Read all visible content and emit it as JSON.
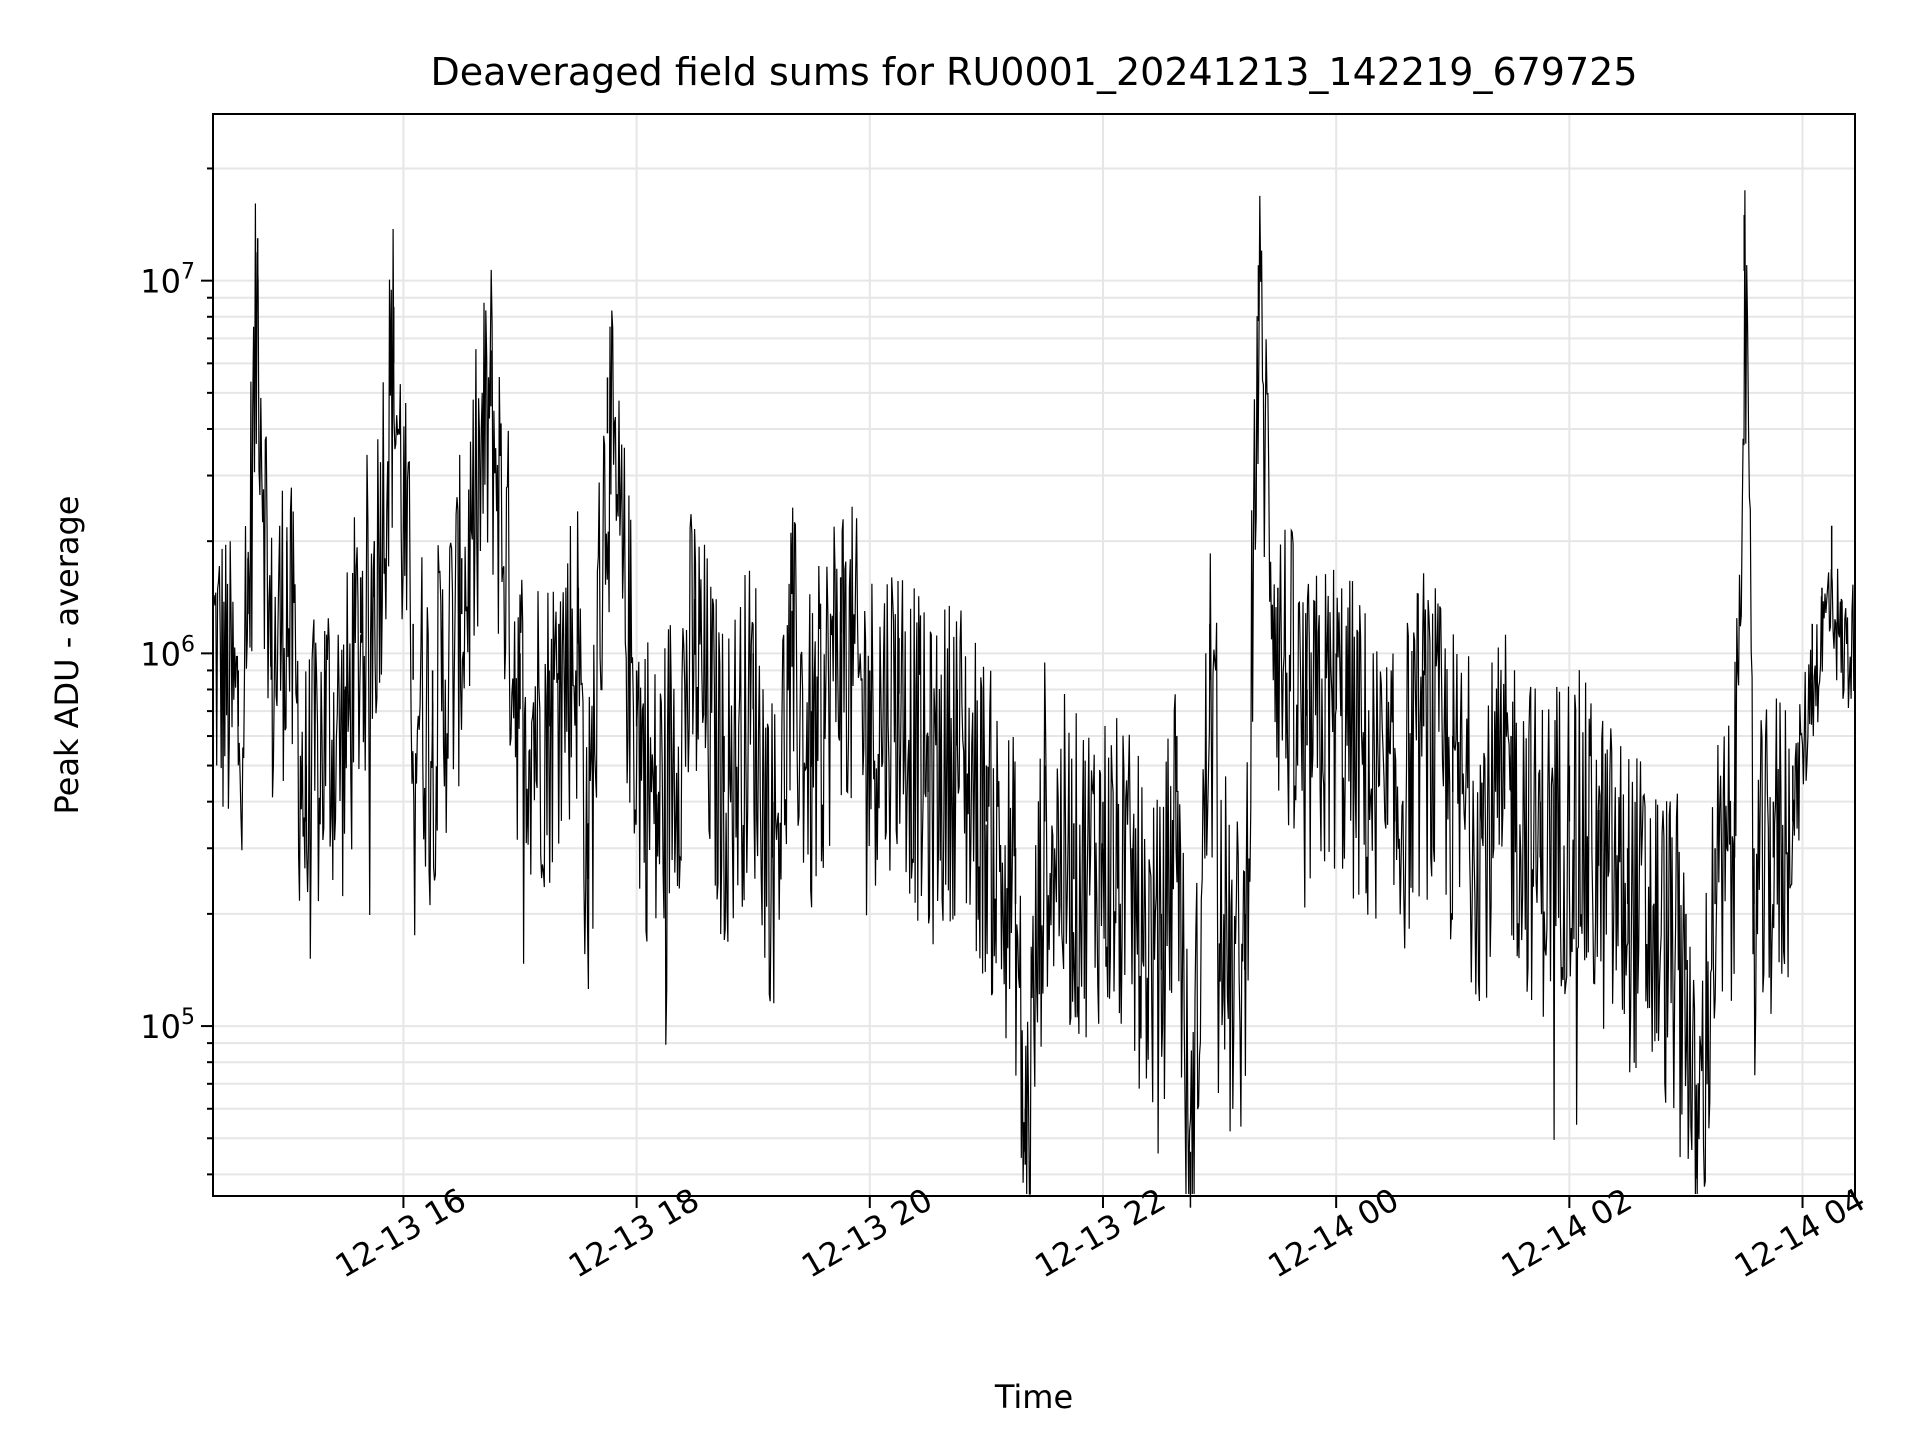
{
  "chart_data": {
    "type": "line",
    "title": "Deaveraged field sums for RU0001_20241213_142219_679725",
    "xlabel": "Time",
    "ylabel": "Peak ADU - average",
    "yscale": "log",
    "xlim": [
      "2024-12-13 14:22",
      "2024-12-14 04:27"
    ],
    "ylim": [
      35000,
      28000000
    ],
    "grid": true,
    "x_ticks": [
      {
        "value": "2024-12-13 16:00",
        "label": "12-13 16"
      },
      {
        "value": "2024-12-13 18:00",
        "label": "12-13 18"
      },
      {
        "value": "2024-12-13 20:00",
        "label": "12-13 20"
      },
      {
        "value": "2024-12-13 22:00",
        "label": "12-13 22"
      },
      {
        "value": "2024-12-14 00:00",
        "label": "12-14 00"
      },
      {
        "value": "2024-12-14 02:00",
        "label": "12-14 02"
      },
      {
        "value": "2024-12-14 04:00",
        "label": "12-14 04"
      }
    ],
    "y_ticks": [
      {
        "value": 100000,
        "base": "10",
        "exp": "5"
      },
      {
        "value": 1000000,
        "base": "10",
        "exp": "6"
      },
      {
        "value": 10000000,
        "base": "10",
        "exp": "7"
      }
    ],
    "series": [
      {
        "color": "#000000",
        "x": [
          "2024-12-13 14:22",
          "2024-12-13 14:35",
          "2024-12-13 14:40",
          "2024-12-13 14:45",
          "2024-12-13 14:52",
          "2024-12-13 15:00",
          "2024-12-13 15:10",
          "2024-12-13 15:20",
          "2024-12-13 15:30",
          "2024-12-13 15:38",
          "2024-12-13 15:45",
          "2024-12-13 15:55",
          "2024-12-13 16:05",
          "2024-12-13 16:15",
          "2024-12-13 16:30",
          "2024-12-13 16:45",
          "2024-12-13 17:00",
          "2024-12-13 17:15",
          "2024-12-13 17:20",
          "2024-12-13 17:30",
          "2024-12-13 17:35",
          "2024-12-13 17:45",
          "2024-12-13 18:00",
          "2024-12-13 18:10",
          "2024-12-13 18:30",
          "2024-12-13 18:45",
          "2024-12-13 19:00",
          "2024-12-13 19:10",
          "2024-12-13 19:20",
          "2024-12-13 19:30",
          "2024-12-13 19:45",
          "2024-12-13 20:00",
          "2024-12-13 20:15",
          "2024-12-13 20:30",
          "2024-12-13 20:45",
          "2024-12-13 21:00",
          "2024-12-13 21:15",
          "2024-12-13 21:20",
          "2024-12-13 21:30",
          "2024-12-13 21:45",
          "2024-12-13 22:00",
          "2024-12-13 22:15",
          "2024-12-13 22:20",
          "2024-12-13 22:30",
          "2024-12-13 22:38",
          "2024-12-13 22:45",
          "2024-12-13 22:55",
          "2024-12-13 23:05",
          "2024-12-13 23:13",
          "2024-12-13 23:20",
          "2024-12-13 23:30",
          "2024-12-13 23:45",
          "2024-12-14 00:00",
          "2024-12-14 00:15",
          "2024-12-14 00:30",
          "2024-12-14 00:45",
          "2024-12-14 01:00",
          "2024-12-14 01:15",
          "2024-12-14 01:30",
          "2024-12-14 01:45",
          "2024-12-14 02:00",
          "2024-12-14 02:15",
          "2024-12-14 02:30",
          "2024-12-14 02:45",
          "2024-12-14 03:00",
          "2024-12-14 03:05",
          "2024-12-14 03:15",
          "2024-12-14 03:25",
          "2024-12-14 03:30",
          "2024-12-14 03:35",
          "2024-12-14 03:45",
          "2024-12-14 03:55",
          "2024-12-14 04:05",
          "2024-12-14 04:10",
          "2024-12-14 04:15",
          "2024-12-14 04:20",
          "2024-12-14 04:27"
        ],
        "y": [
          1500000,
          900000,
          1800000,
          13000000,
          1200000,
          2000000,
          500000,
          900000,
          800000,
          1600000,
          2000000,
          8500000,
          1200000,
          900000,
          1800000,
          6500000,
          1000000,
          900000,
          1200000,
          1500000,
          350000,
          5500000,
          900000,
          500000,
          1400000,
          600000,
          1000000,
          400000,
          1300000,
          700000,
          1600000,
          900000,
          1100000,
          600000,
          800000,
          500000,
          300000,
          60000,
          500000,
          350000,
          400000,
          300000,
          250000,
          200000,
          600000,
          46000,
          1200000,
          180000,
          200000,
          11000000,
          1500000,
          800000,
          1000000,
          700000,
          500000,
          900000,
          600000,
          450000,
          600000,
          400000,
          500000,
          380000,
          300000,
          250000,
          200000,
          55000,
          300000,
          400000,
          15000000,
          300000,
          400000,
          500000,
          1200000,
          1500000,
          2200000,
          1400000,
          1500000
        ]
      }
    ]
  }
}
